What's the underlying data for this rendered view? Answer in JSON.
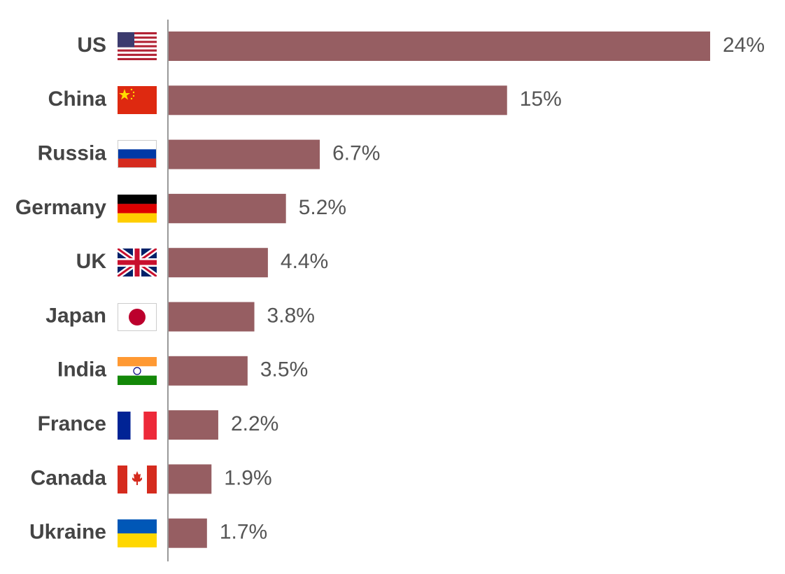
{
  "chart_data": {
    "type": "bar",
    "orientation": "horizontal",
    "categories": [
      "US",
      "China",
      "Russia",
      "Germany",
      "UK",
      "Japan",
      "India",
      "France",
      "Canada",
      "Ukraine"
    ],
    "values": [
      24,
      15,
      6.7,
      5.2,
      4.4,
      3.8,
      3.5,
      2.2,
      1.9,
      1.7
    ],
    "value_labels": [
      "24%",
      "15%",
      "6.7%",
      "5.2%",
      "4.4%",
      "3.8%",
      "3.5%",
      "2.2%",
      "1.9%",
      "1.7%"
    ],
    "color": "#965e62"
  }
}
